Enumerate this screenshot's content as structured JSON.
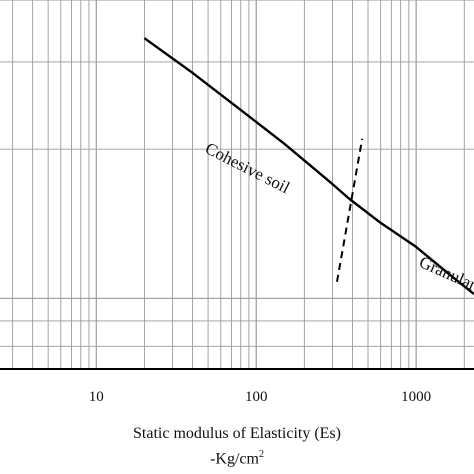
{
  "chart_data": {
    "type": "line",
    "xscale": "log",
    "yscale": "log",
    "grid": true,
    "xlabel": "Static modulus of Elasticity  (Es)",
    "xunit_prefix": "-Kg/cm",
    "xunit_sup": "2",
    "xticks": [
      "10",
      "100",
      "1000"
    ],
    "xlim": [
      2.5,
      2300
    ],
    "ylim": [
      0.72,
      4.0
    ],
    "series": [
      {
        "name": "Cohesive soil",
        "x": [
          20,
          40,
          80,
          150,
          300,
          380
        ],
        "y": [
          3.35,
          2.85,
          2.4,
          2.05,
          1.7,
          1.59
        ]
      },
      {
        "name": "Granular soil",
        "x": [
          380,
          600,
          1000,
          1600,
          2300
        ],
        "y": [
          1.59,
          1.42,
          1.27,
          1.12,
          1.02
        ]
      }
    ],
    "boundary": {
      "x": [
        320,
        460
      ],
      "y": [
        1.08,
        2.1
      ],
      "style": "dashed"
    },
    "labels": {
      "cohesive": "Cohesive soil",
      "granular": "Granular soil"
    },
    "colors": {
      "line": "#000000",
      "grid": "#9a9a9a",
      "axis": "#000000"
    }
  }
}
